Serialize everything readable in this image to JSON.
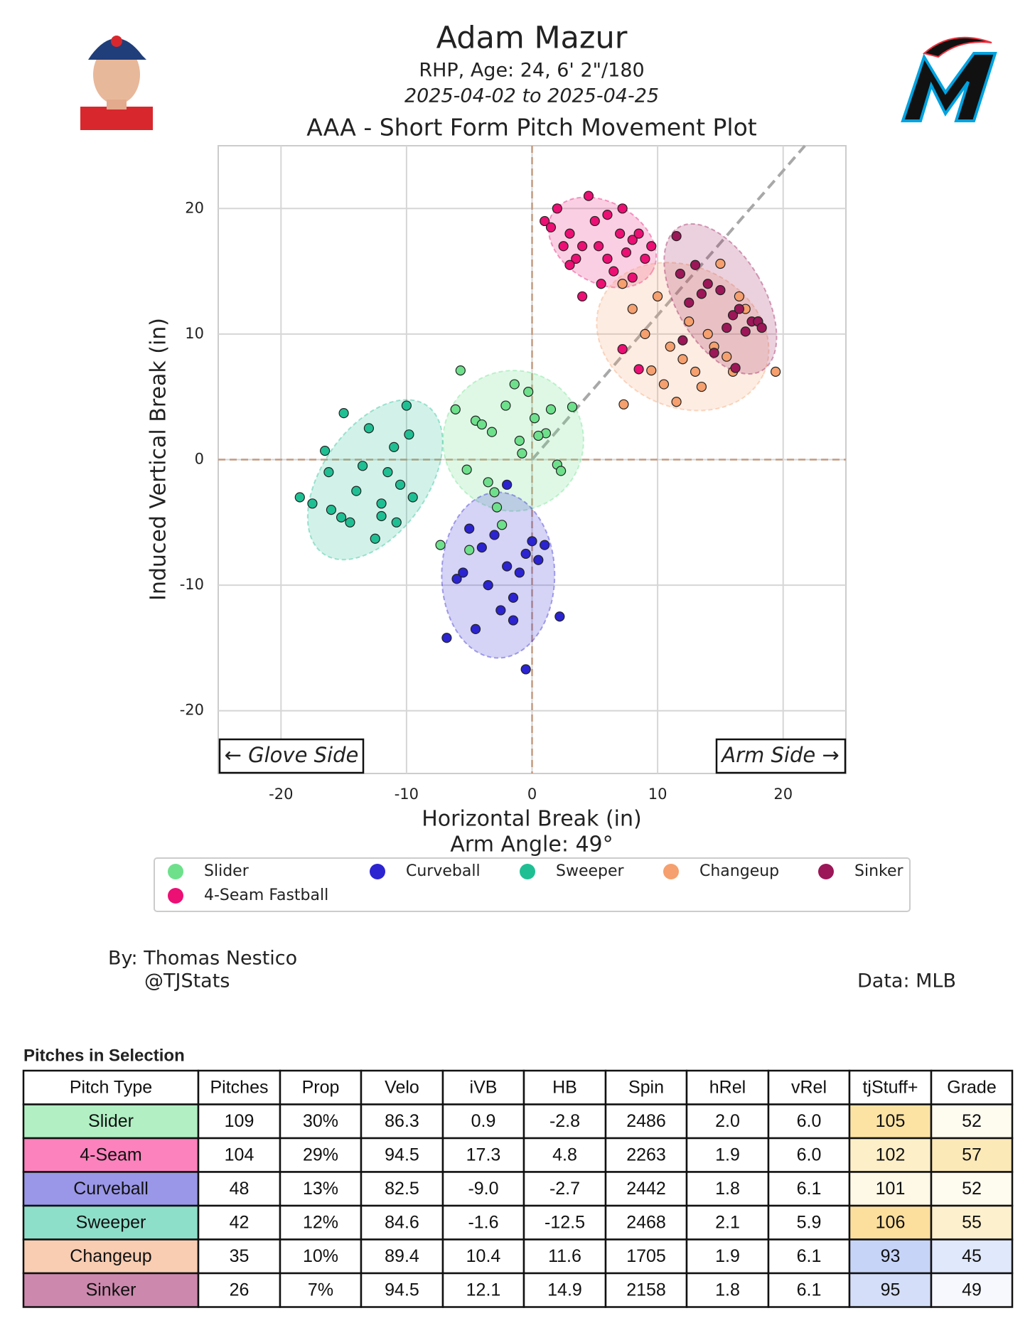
{
  "chart_data": {
    "type": "scatter",
    "title": "Adam Mazur",
    "subtitle": "RHP, Age: 24, 6' 2\"/180",
    "date_range": "2025-04-02 to 2025-04-25",
    "plot_title": "AAA - Short Form Pitch Movement Plot",
    "xlabel": "Horizontal Break (in)",
    "ylabel": "Induced Vertical Break (in)",
    "arm_angle": 49,
    "arm_angle_label": "Arm Angle: 49°",
    "glove_side": "← Glove Side",
    "arm_side": "Arm Side →",
    "xlim": [
      -25,
      25
    ],
    "ylim": [
      -25,
      25
    ],
    "xticks": [
      -20,
      -10,
      0,
      10,
      20
    ],
    "yticks": [
      -20,
      -10,
      0,
      10,
      20
    ],
    "grid": true,
    "series": [
      {
        "name": "Slider",
        "color": "#6ee08c",
        "x": [
          -4.5,
          -3.2,
          -2.1,
          -1.0,
          0.2,
          1.1,
          2.0,
          -5.2,
          -6.1,
          -3.0,
          -2.4,
          -0.3,
          1.5,
          3.2,
          -5.7,
          -1.4,
          2.3,
          -5.0,
          -3.5,
          -7.3,
          -0.8,
          -2.8,
          0.5,
          -4.0
        ],
        "values": [
          3.1,
          2.2,
          4.3,
          1.5,
          3.3,
          2.1,
          -0.4,
          -0.8,
          4.0,
          -2.6,
          -5.2,
          5.4,
          4.0,
          4.2,
          7.1,
          6.0,
          -0.9,
          -7.2,
          -1.8,
          -6.8,
          0.5,
          -3.8,
          1.9,
          2.8
        ]
      },
      {
        "name": "Curveball",
        "color": "#2b24d0",
        "x": [
          -5,
          -4,
          -3,
          -2,
          -1,
          0,
          1,
          -6,
          -3.5,
          -1.5,
          0.5,
          -4.5,
          -2.5,
          -0.5,
          -6.8,
          -5.5,
          -1.5,
          -0.5,
          2.2,
          -2
        ],
        "values": [
          -5.5,
          -7,
          -6,
          -8.5,
          -9,
          -6.5,
          -6.8,
          -9.5,
          -10,
          -11,
          -8,
          -13.5,
          -12,
          -7.5,
          -14.2,
          -9,
          -12.8,
          -16.7,
          -12.5,
          -2.0
        ]
      },
      {
        "name": "Sweeper",
        "color": "#1fbf93",
        "x": [
          -18.5,
          -17.5,
          -16.5,
          -16,
          -15,
          -14.5,
          -13,
          -12,
          -11.5,
          -10.5,
          -10,
          -9.5,
          -14,
          -12.5,
          -11,
          -16.2,
          -13.5,
          -12,
          -10.8,
          -15.2,
          -9.8
        ],
        "values": [
          -3,
          -3.5,
          0.7,
          -4,
          3.7,
          -5,
          2.5,
          -4.5,
          -1,
          -2,
          4.3,
          -3,
          -2.5,
          -6.3,
          1,
          -1,
          -0.5,
          -3.5,
          -5,
          -4.6,
          2.0
        ]
      },
      {
        "name": "Changeup",
        "color": "#f5a06e",
        "x": [
          7.2,
          8,
          9,
          10,
          11,
          12,
          13,
          14,
          15,
          16,
          17,
          18,
          19.4,
          10.5,
          12.5,
          14.5,
          16.5,
          11.5,
          13.5,
          15.5,
          9.5,
          7.3
        ],
        "values": [
          14,
          12,
          10,
          13,
          9,
          8,
          7,
          10,
          15.6,
          7,
          12,
          11,
          7,
          6,
          11,
          9,
          13,
          4.6,
          5.8,
          8.2,
          7.1,
          4.4
        ]
      },
      {
        "name": "Sinker",
        "color": "#9b1757",
        "x": [
          11.5,
          12.5,
          13,
          14,
          15,
          15.5,
          16,
          16.5,
          17,
          17.5,
          18,
          18.3,
          12,
          14.5,
          16.2,
          13.5,
          11.8
        ],
        "values": [
          17.8,
          12.5,
          15.5,
          14,
          13.5,
          10.5,
          11.5,
          12,
          10.2,
          11,
          11,
          10.5,
          9.5,
          8.5,
          7.3,
          13.2,
          14.8
        ]
      },
      {
        "name": "4-Seam Fastball",
        "color": "#ec0f74",
        "x": [
          1,
          2,
          3,
          4,
          5,
          6,
          7,
          8,
          9,
          2.5,
          4.5,
          6.5,
          8.5,
          3.5,
          5.5,
          7.5,
          1.5,
          4,
          6,
          8,
          5.3,
          7.2,
          9.5,
          3,
          7.2,
          8.5
        ],
        "values": [
          19,
          20,
          18,
          17,
          19,
          16,
          18,
          17.5,
          16,
          17,
          21,
          15,
          18,
          16,
          14,
          16.5,
          18.5,
          13,
          19.5,
          14.5,
          17,
          20,
          17,
          15.5,
          8.8,
          7.2
        ]
      }
    ],
    "credit_by": "By: Thomas Nestico",
    "credit_handle": "@TJStats",
    "credit_data": "Data: MLB"
  },
  "table": {
    "title": "Pitches in Selection",
    "columns": [
      "Pitch Type",
      "Pitches",
      "Prop",
      "Velo",
      "iVB",
      "HB",
      "Spin",
      "hRel",
      "vRel",
      "tjStuff+",
      "Grade"
    ],
    "rows": [
      [
        "Slider",
        "109",
        "30%",
        "86.3",
        "0.9",
        "-2.8",
        "2486",
        "2.0",
        "6.0",
        "105",
        "52"
      ],
      [
        "4-Seam",
        "104",
        "29%",
        "94.5",
        "17.3",
        "4.8",
        "2263",
        "1.9",
        "6.0",
        "102",
        "57"
      ],
      [
        "Curveball",
        "48",
        "13%",
        "82.5",
        "-9.0",
        "-2.7",
        "2442",
        "1.8",
        "6.1",
        "101",
        "52"
      ],
      [
        "Sweeper",
        "42",
        "12%",
        "84.6",
        "-1.6",
        "-12.5",
        "2468",
        "2.1",
        "5.9",
        "106",
        "55"
      ],
      [
        "Changeup",
        "35",
        "10%",
        "89.4",
        "10.4",
        "11.6",
        "1705",
        "1.9",
        "6.1",
        "93",
        "45"
      ],
      [
        "Sinker",
        "26",
        "7%",
        "94.5",
        "12.1",
        "14.9",
        "2158",
        "1.8",
        "6.1",
        "95",
        "49"
      ]
    ],
    "pitch_colors": [
      "#b2f0c4",
      "#fb82bc",
      "#9a97e8",
      "#8edfc9",
      "#f9cdb2",
      "#cd89ad"
    ],
    "stuff_colors": [
      "#fce3a4",
      "#fdf0c8",
      "#fef8e6",
      "#fcdf9c",
      "#c6d4f8",
      "#d4def8"
    ],
    "grade_colors": [
      "#fefbef",
      "#fce9b8",
      "#fefbef",
      "#fdf0cc",
      "#e0e8fb",
      "#f6f8fe"
    ]
  }
}
